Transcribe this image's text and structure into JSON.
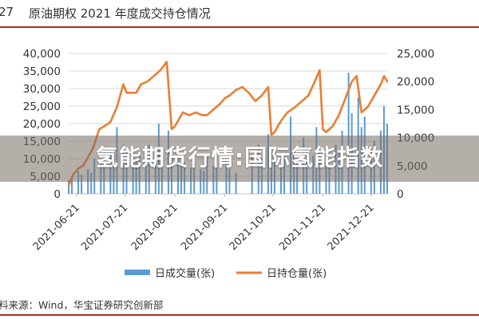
{
  "figure": {
    "number": "27",
    "title": "原油期权 2021 年度成交持仓情况"
  },
  "source": "料来源：Wind，华宝证券研究创新部",
  "overlay_title": "氢能期货行情:国际氢能指数",
  "colors": {
    "volume": "#5b9bd5",
    "open_interest": "#ed7d31",
    "rule": "#b02a2a"
  },
  "chart_data": {
    "type": "bar",
    "x_ticks": [
      "2021-06-21",
      "2021-07-21",
      "2021-08-21",
      "2021-09-21",
      "2021-10-21",
      "2021-11-21",
      "2021-12-21"
    ],
    "x_range": [
      "2021-06-16",
      "2021-12-31"
    ],
    "y_left": {
      "min": 0,
      "max": 40000,
      "ticks": [
        "0",
        "5,000",
        "10,000",
        "15,000",
        "20,000",
        "25,000",
        "30,000",
        "35,000",
        "40,000"
      ]
    },
    "y_right": {
      "min": 0,
      "max": 25000,
      "ticks": [
        "0",
        "5,000",
        "10,000",
        "15,000",
        "20,000",
        "25,000"
      ]
    },
    "grid": true,
    "legend": "bottom",
    "series": [
      {
        "name": "日成交量(张)",
        "type": "bar",
        "axis": "left",
        "x": [
          "2021-06-16",
          "2021-06-18",
          "2021-06-22",
          "2021-06-24",
          "2021-06-28",
          "2021-06-30",
          "2021-07-02",
          "2021-07-06",
          "2021-07-08",
          "2021-07-12",
          "2021-07-14",
          "2021-07-16",
          "2021-07-20",
          "2021-07-22",
          "2021-07-26",
          "2021-07-28",
          "2021-07-30",
          "2021-08-03",
          "2021-08-05",
          "2021-08-09",
          "2021-08-11",
          "2021-08-13",
          "2021-08-17",
          "2021-08-19",
          "2021-08-23",
          "2021-08-25",
          "2021-08-27",
          "2021-08-31",
          "2021-09-02",
          "2021-09-06",
          "2021-09-08",
          "2021-09-10",
          "2021-09-14",
          "2021-09-16",
          "2021-09-22",
          "2021-09-24",
          "2021-09-28",
          "2021-10-08",
          "2021-10-12",
          "2021-10-14",
          "2021-10-18",
          "2021-10-20",
          "2021-10-22",
          "2021-10-26",
          "2021-10-28",
          "2021-11-01",
          "2021-11-03",
          "2021-11-05",
          "2021-11-09",
          "2021-11-11",
          "2021-11-15",
          "2021-11-17",
          "2021-11-19",
          "2021-11-23",
          "2021-11-25",
          "2021-11-29",
          "2021-12-01",
          "2021-12-03",
          "2021-12-07",
          "2021-12-09",
          "2021-12-13",
          "2021-12-15",
          "2021-12-17",
          "2021-12-21",
          "2021-12-23",
          "2021-12-27",
          "2021-12-29",
          "2021-12-31"
        ],
        "values": [
          4000,
          5000,
          6500,
          5500,
          7000,
          6000,
          10000,
          9000,
          13000,
          12000,
          11000,
          19000,
          14000,
          12000,
          12000,
          10000,
          11000,
          13000,
          14000,
          12000,
          20000,
          13000,
          18000,
          12500,
          11000,
          8000,
          9000,
          7500,
          9000,
          7000,
          6500,
          10500,
          8000,
          7500,
          9500,
          7000,
          6000,
          11000,
          14000,
          10000,
          17000,
          12000,
          9000,
          8000,
          10500,
          22000,
          12000,
          10000,
          16000,
          13000,
          11000,
          19000,
          12000,
          9000,
          8000,
          14000,
          12000,
          18000,
          34500,
          23000,
          27500,
          19000,
          22000,
          13000,
          15000,
          18000,
          25000,
          20000
        ]
      },
      {
        "name": "日持仓量(张)",
        "type": "line",
        "axis": "right",
        "x": [
          "2021-06-16",
          "2021-06-19",
          "2021-06-22",
          "2021-06-25",
          "2021-06-28",
          "2021-07-01",
          "2021-07-05",
          "2021-07-08",
          "2021-07-12",
          "2021-07-16",
          "2021-07-20",
          "2021-07-22",
          "2021-07-25",
          "2021-07-28",
          "2021-07-31",
          "2021-08-04",
          "2021-08-08",
          "2021-08-12",
          "2021-08-16",
          "2021-08-19",
          "2021-08-21",
          "2021-08-23",
          "2021-08-26",
          "2021-08-30",
          "2021-09-03",
          "2021-09-07",
          "2021-09-10",
          "2021-09-14",
          "2021-09-18",
          "2021-09-21",
          "2021-09-24",
          "2021-09-28",
          "2021-10-02",
          "2021-10-06",
          "2021-10-10",
          "2021-10-14",
          "2021-10-18",
          "2021-10-20",
          "2021-10-22",
          "2021-10-26",
          "2021-10-30",
          "2021-11-04",
          "2021-11-08",
          "2021-11-12",
          "2021-11-16",
          "2021-11-19",
          "2021-11-21",
          "2021-11-23",
          "2021-11-27",
          "2021-12-01",
          "2021-12-05",
          "2021-12-09",
          "2021-12-12",
          "2021-12-15",
          "2021-12-19",
          "2021-12-23",
          "2021-12-27",
          "2021-12-29",
          "2021-12-31"
        ],
        "values": [
          1500,
          3500,
          4500,
          5000,
          6500,
          8000,
          11500,
          12000,
          12800,
          15500,
          19500,
          18000,
          18000,
          18000,
          19500,
          20000,
          21000,
          22000,
          23500,
          11500,
          12000,
          13000,
          14500,
          14000,
          14500,
          14000,
          14000,
          15000,
          16000,
          17000,
          17500,
          18500,
          19000,
          18000,
          16500,
          17500,
          19000,
          10500,
          11000,
          13000,
          14500,
          15500,
          16500,
          17500,
          20000,
          22000,
          11500,
          11000,
          12000,
          14000,
          17000,
          20000,
          21000,
          14500,
          15500,
          17500,
          19500,
          21000,
          20000
        ]
      }
    ]
  }
}
